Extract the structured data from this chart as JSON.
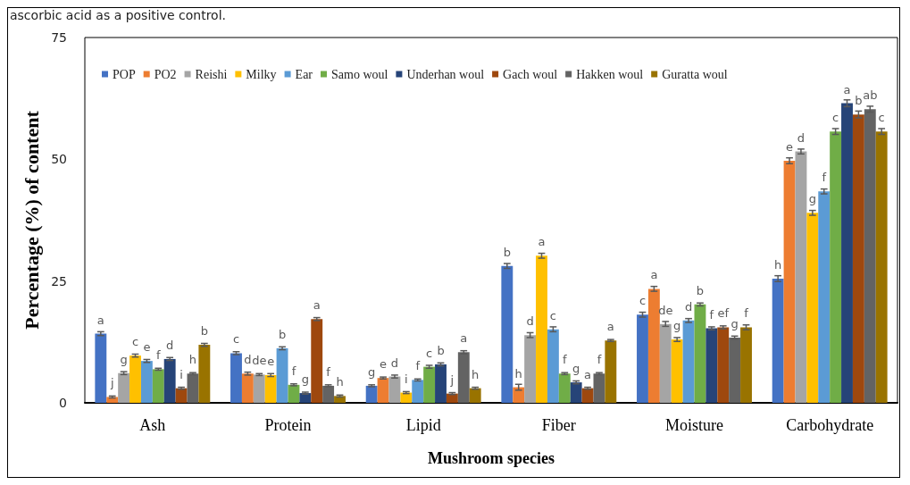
{
  "chart_data": {
    "type": "bar",
    "xlabel": "Mushroom species",
    "ylabel": "Percentage (%) of content",
    "annotations": [
      "ascorbic acid as a positive control."
    ],
    "categories": [
      "Ash",
      "Protein",
      "Lipid",
      "Fiber",
      "Moisture",
      "Carbohydrate"
    ],
    "ylim": [
      0,
      75
    ],
    "yticks": [
      0,
      25,
      50,
      75
    ],
    "grid": false,
    "legend": "top",
    "series": [
      {
        "name": "POP",
        "color": "#4472c4",
        "values": [
          14.2,
          10.2,
          3.5,
          28.1,
          18.1,
          25.5
        ],
        "errors": [
          0.4,
          0.3,
          0.2,
          0.5,
          0.5,
          0.6
        ],
        "value_labels": [
          "a",
          "c",
          "g",
          "b",
          "c",
          "h"
        ]
      },
      {
        "name": "PO2",
        "color": "#ed7d31",
        "values": [
          1.2,
          6.0,
          5.1,
          3.2,
          23.4,
          49.7
        ],
        "errors": [
          0.2,
          0.3,
          0.2,
          0.6,
          0.5,
          0.6
        ],
        "value_labels": [
          "j",
          "d",
          "e",
          "h",
          "a",
          "e"
        ]
      },
      {
        "name": "Reishi",
        "color": "#a5a5a5",
        "values": [
          6.1,
          5.8,
          5.4,
          13.9,
          16.2,
          51.6
        ],
        "errors": [
          0.3,
          0.2,
          0.3,
          0.5,
          0.5,
          0.5
        ],
        "value_labels": [
          "g",
          "de",
          "d",
          "d",
          "de",
          "d"
        ]
      },
      {
        "name": "Milky",
        "color": "#ffc000",
        "values": [
          9.7,
          5.7,
          2.1,
          30.2,
          13.0,
          39.0
        ],
        "errors": [
          0.3,
          0.3,
          0.2,
          0.5,
          0.4,
          0.5
        ],
        "value_labels": [
          "c",
          "e",
          "i",
          "a",
          "g",
          "g"
        ]
      },
      {
        "name": "Ear",
        "color": "#5b9bd5",
        "values": [
          8.6,
          11.2,
          4.7,
          15.1,
          16.9,
          43.4
        ],
        "errors": [
          0.3,
          0.3,
          0.2,
          0.5,
          0.4,
          0.5
        ],
        "value_labels": [
          "e",
          "b",
          "f",
          "c",
          "d",
          "f"
        ]
      },
      {
        "name": "Samo woul",
        "color": "#70ad47",
        "values": [
          6.9,
          3.7,
          7.4,
          6.0,
          20.2,
          55.7
        ],
        "errors": [
          0.2,
          0.2,
          0.3,
          0.2,
          0.3,
          0.6
        ],
        "value_labels": [
          "f",
          "f",
          "c",
          "f",
          "b",
          "c"
        ]
      },
      {
        "name": "Underhan woul",
        "color": "#264478",
        "values": [
          9.0,
          2.0,
          7.9,
          4.2,
          15.3,
          61.5
        ],
        "errors": [
          0.3,
          0.2,
          0.3,
          0.3,
          0.3,
          0.7
        ],
        "value_labels": [
          "d",
          "g",
          "b",
          "g",
          "f",
          "a"
        ]
      },
      {
        "name": "Gach woul",
        "color": "#9e480e",
        "values": [
          3.0,
          17.2,
          1.9,
          3.0,
          15.5,
          59.2
        ],
        "errors": [
          0.2,
          0.3,
          0.2,
          0.2,
          0.3,
          0.7
        ],
        "value_labels": [
          "i",
          "a",
          "j",
          "a",
          "ef",
          "b"
        ]
      },
      {
        "name": "Hakken woul",
        "color": "#636363",
        "values": [
          6.0,
          3.5,
          10.4,
          6.0,
          13.4,
          60.3
        ],
        "errors": [
          0.2,
          0.2,
          0.3,
          0.2,
          0.3,
          0.6
        ],
        "value_labels": [
          "h",
          "f",
          "a",
          "f",
          "g",
          "ab"
        ]
      },
      {
        "name": "Guratta woul",
        "color": "#997300",
        "values": [
          11.9,
          1.4,
          3.0,
          12.8,
          15.5,
          55.7
        ],
        "errors": [
          0.3,
          0.2,
          0.2,
          0.2,
          0.5,
          0.6
        ],
        "value_labels": [
          "b",
          "h",
          "h",
          "a",
          "f",
          "c"
        ]
      }
    ]
  }
}
